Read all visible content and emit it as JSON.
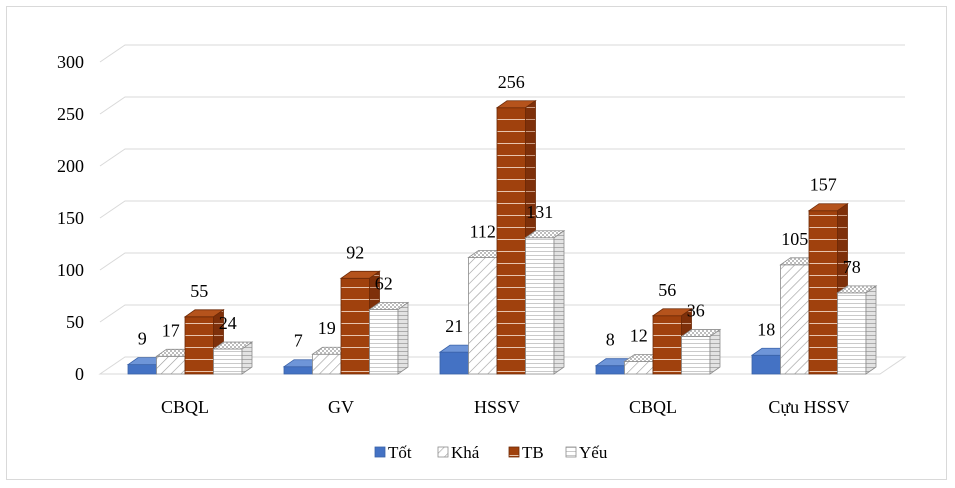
{
  "chart_data": {
    "type": "bar",
    "categories": [
      "CBQL",
      "GV",
      "HSSV",
      "CBQL",
      "Cựu HSSV"
    ],
    "series": [
      {
        "name": "Tốt",
        "values": [
          9,
          7,
          21,
          8,
          18
        ],
        "color": "#4472c4",
        "pattern": "solid"
      },
      {
        "name": "Khá",
        "values": [
          17,
          19,
          112,
          12,
          105
        ],
        "color": "#ffffff",
        "pattern": "diagonal"
      },
      {
        "name": "TB",
        "values": [
          55,
          92,
          256,
          56,
          157
        ],
        "color": "#a0410d",
        "pattern": "brick"
      },
      {
        "name": "Yếu",
        "values": [
          24,
          62,
          131,
          36,
          78
        ],
        "color": "#ffffff",
        "pattern": "horizontal"
      }
    ],
    "y_ticks": [
      "0",
      "50",
      "100",
      "150",
      "200",
      "250",
      "300"
    ],
    "ylim": [
      0,
      300
    ],
    "grid": true,
    "legend": "bottom",
    "style": "3d-clustered-column"
  }
}
